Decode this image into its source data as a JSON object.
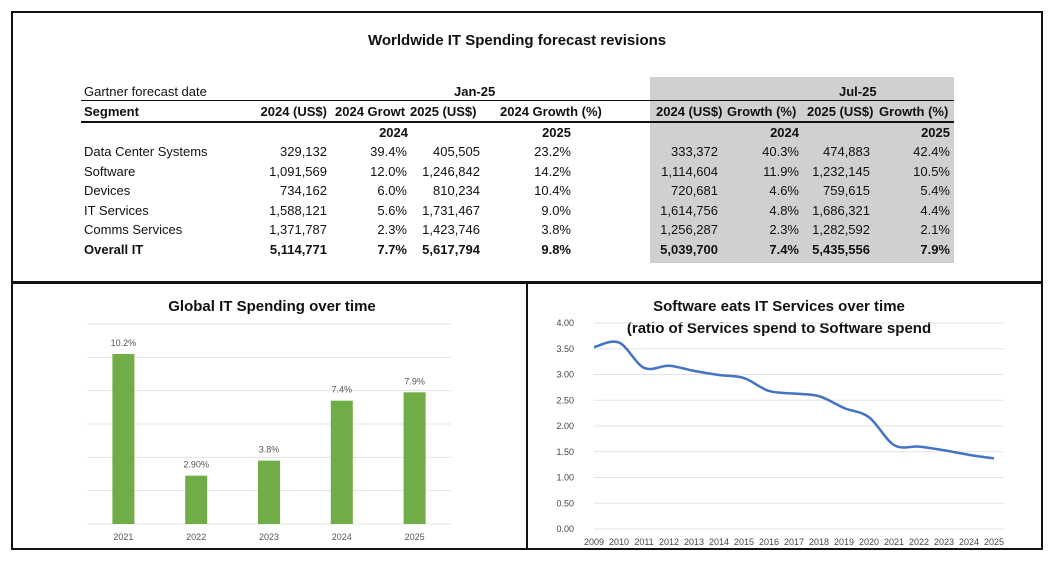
{
  "table": {
    "title": "Worldwide IT Spending forecast revisions",
    "forecast_date_label": "Gartner forecast date",
    "jan_label": "Jan-25",
    "jul_label": "Jul-25",
    "headers": [
      "Segment",
      "2024 (US$)",
      "2024 Growt",
      "2025 (US$)",
      "2024 Growth (%)",
      "2024 (US$)",
      "Growth (%)",
      "2025 (US$)",
      "Growth (%)"
    ],
    "subheaders": [
      "2024",
      "2025",
      "2024",
      "2025"
    ],
    "rows": [
      {
        "segment": "Data Center Systems",
        "v": [
          "329,132",
          "39.4%",
          "405,505",
          "23.2%",
          "333,372",
          "40.3%",
          "474,883",
          "42.4%"
        ]
      },
      {
        "segment": "Software",
        "v": [
          "1,091,569",
          "12.0%",
          "1,246,842",
          "14.2%",
          "1,114,604",
          "11.9%",
          "1,232,145",
          "10.5%"
        ]
      },
      {
        "segment": "Devices",
        "v": [
          "734,162",
          "6.0%",
          "810,234",
          "10.4%",
          "720,681",
          "4.6%",
          "759,615",
          "5.4%"
        ]
      },
      {
        "segment": "IT Services",
        "v": [
          "1,588,121",
          "5.6%",
          "1,731,467",
          "9.0%",
          "1,614,756",
          "4.8%",
          "1,686,321",
          "4.4%"
        ]
      },
      {
        "segment": "Comms Services",
        "v": [
          "1,371,787",
          "2.3%",
          "1,423,746",
          "3.8%",
          "1,256,287",
          "2.3%",
          "1,282,592",
          "2.1%"
        ]
      },
      {
        "segment": "Overall IT",
        "v": [
          "5,114,771",
          "7.7%",
          "5,617,794",
          "9.8%",
          "5,039,700",
          "7.4%",
          "5,435,556",
          "7.9%"
        ]
      }
    ]
  },
  "chart_data": [
    {
      "type": "bar",
      "title": "Global IT Spending over time",
      "categories": [
        "2021",
        "2022",
        "2023",
        "2024",
        "2025"
      ],
      "values": [
        10.2,
        2.9,
        3.8,
        7.4,
        7.9
      ],
      "data_labels": [
        "10.2%",
        "2.90%",
        "3.8%",
        "7.4%",
        "7.9%"
      ],
      "ylim": [
        0,
        12
      ],
      "grid": true,
      "color": "#70ad47"
    },
    {
      "type": "line",
      "title": "Software eats IT Services over time",
      "subtitle": "(ratio of Services spend to Software spend",
      "x": [
        "2009",
        "2010",
        "2011",
        "2012",
        "2013",
        "2014",
        "2015",
        "2016",
        "2017",
        "2018",
        "2019",
        "2020",
        "2021",
        "2022",
        "2023",
        "2024",
        "2025"
      ],
      "values": [
        3.53,
        3.62,
        3.13,
        3.17,
        3.07,
        2.99,
        2.93,
        2.68,
        2.63,
        2.58,
        2.35,
        2.17,
        1.63,
        1.6,
        1.53,
        1.44,
        1.37
      ],
      "yticks": [
        "4.00",
        "3.50",
        "3.00",
        "2.50",
        "2.00",
        "1.50",
        "1.00",
        "0.50",
        "0.00"
      ],
      "ylim": [
        0,
        4
      ],
      "grid": true,
      "color": "#4472c4"
    }
  ]
}
